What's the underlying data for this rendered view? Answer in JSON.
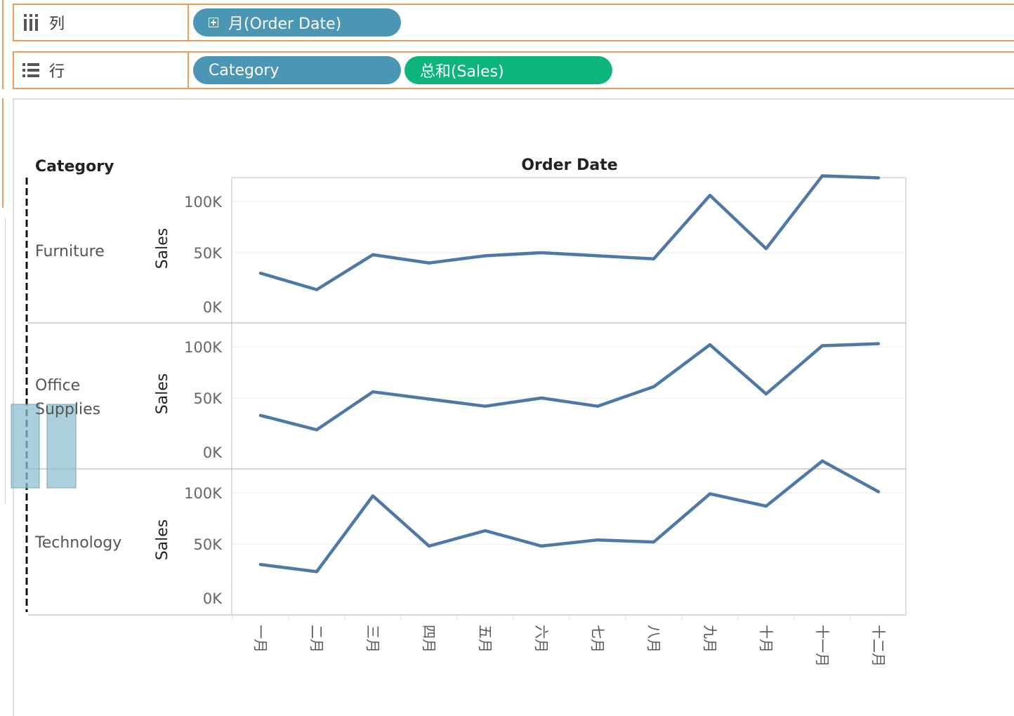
{
  "shelves": {
    "columns": {
      "label": "列",
      "icon": "columns-icon",
      "pills": [
        {
          "label": "月(Order Date)",
          "kind": "dimension",
          "icon": "plus-box-icon"
        }
      ]
    },
    "rows": {
      "label": "行",
      "icon": "rows-icon",
      "pills": [
        {
          "label": "Category",
          "kind": "dimension"
        },
        {
          "label": "总和(Sales)",
          "kind": "measure"
        }
      ]
    }
  },
  "colors": {
    "shelf_border": "#ef9c5a",
    "dimension_pill": "#4a96b4",
    "measure_pill": "#0db47e",
    "line": "#4e79a7"
  },
  "chart_data": {
    "type": "line",
    "row_header": "Category",
    "column_header": "Order Date",
    "ylabel": "Sales",
    "ylim": [
      0,
      140000
    ],
    "y_ticks": [
      {
        "value": 0,
        "label": "0K"
      },
      {
        "value": 50000,
        "label": "50K"
      },
      {
        "value": 100000,
        "label": "100K"
      }
    ],
    "categories": [
      "一月",
      "二月",
      "三月",
      "四月",
      "五月",
      "六月",
      "七月",
      "八月",
      "九月",
      "十月",
      "十一月",
      "十二月"
    ],
    "series": [
      {
        "name": "Furniture",
        "values": [
          30000,
          14000,
          48000,
          40000,
          47000,
          50000,
          47000,
          44000,
          106000,
          54000,
          125000,
          123000
        ]
      },
      {
        "name": "Office Supplies",
        "values": [
          33000,
          19000,
          56000,
          49000,
          42000,
          50000,
          42000,
          61000,
          102000,
          54000,
          101000,
          103000
        ]
      },
      {
        "name": "Technology",
        "values": [
          30000,
          23000,
          97000,
          48000,
          63000,
          48000,
          54000,
          52000,
          99000,
          87000,
          131000,
          101000
        ]
      }
    ],
    "grid": true,
    "legend": "none"
  }
}
